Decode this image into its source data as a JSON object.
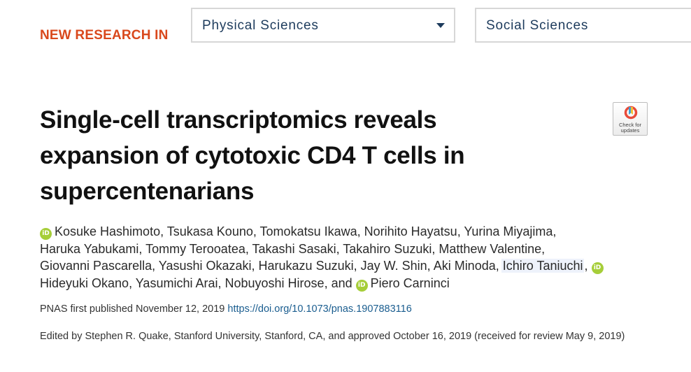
{
  "section_label": "NEW RESEARCH IN",
  "filters": {
    "physical": "Physical Sciences",
    "social": "Social Sciences"
  },
  "article": {
    "title": "Single-cell transcriptomics reveals expansion of cytotoxic CD4 T cells in supercentenarians",
    "crossmark_label": "Check for updates",
    "authors": [
      "Kosuke Hashimoto",
      "Tsukasa Kouno",
      "Tomokatsu Ikawa",
      "Norihito Hayatsu",
      "Yurina Miyajima",
      "Haruka Yabukami",
      "Tommy Terooatea",
      "Takashi Sasaki",
      "Takahiro Suzuki",
      "Matthew Valentine",
      "Giovanni Pascarella",
      "Yasushi Okazaki",
      "Harukazu Suzuki",
      "Jay W. Shin",
      "Aki Minoda",
      "Ichiro Taniuchi",
      "Hideyuki Okano",
      "Yasumichi Arai",
      "Nobuyoshi Hirose",
      "Piero Carninci"
    ],
    "and_word": "and",
    "orcid_badge": "iD",
    "pub_prefix": "PNAS first published November 12, 2019",
    "doi": "https://doi.org/10.1073/pnas.1907883116",
    "edited": "Edited by Stephen R. Quake, Stanford University, Stanford, CA, and approved October 16, 2019 (received for review May 9, 2019)"
  },
  "colors": {
    "section_label": "#d9481c",
    "select_text": "#1d3b5c",
    "link": "#1a5d8f",
    "orcid": "#a6ce39"
  }
}
